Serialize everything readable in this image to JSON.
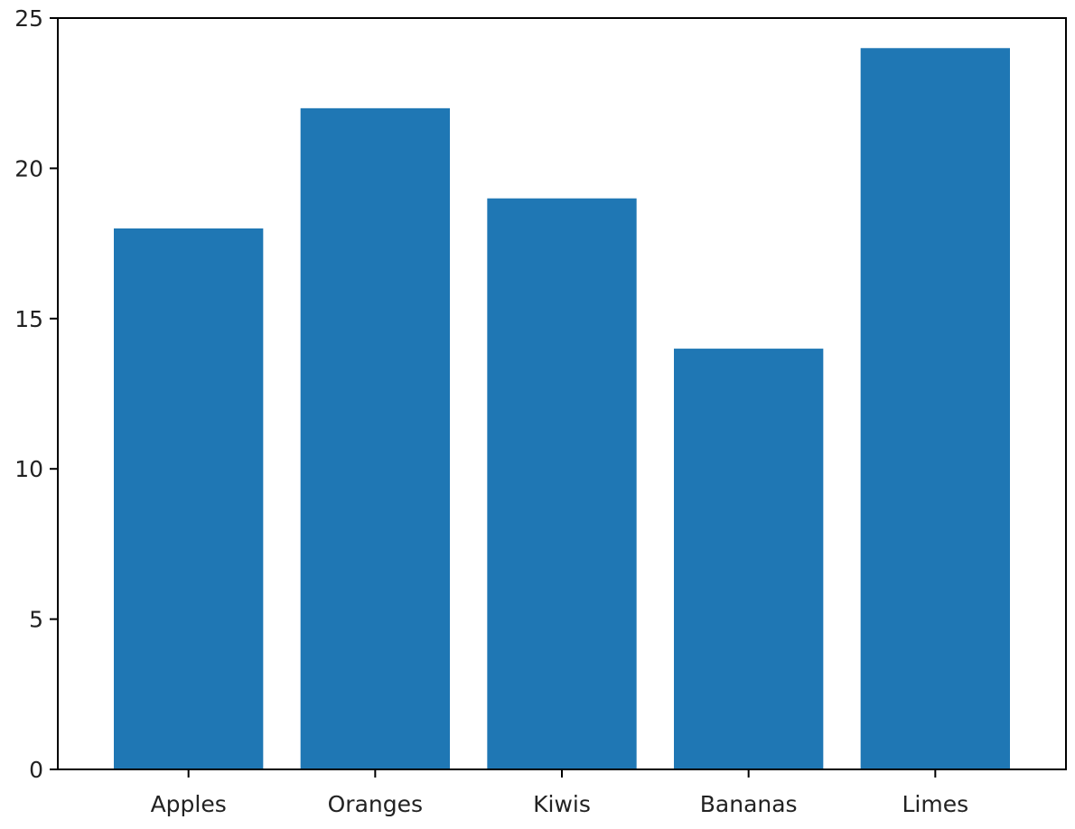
{
  "chart_data": {
    "type": "bar",
    "categories": [
      "Apples",
      "Oranges",
      "Kiwis",
      "Bananas",
      "Limes"
    ],
    "values": [
      18,
      22,
      19,
      14,
      24
    ],
    "title": "",
    "xlabel": "",
    "ylabel": "",
    "ylim": [
      0,
      25
    ],
    "yticks": [
      0,
      5,
      10,
      15,
      20,
      25
    ],
    "grid": false,
    "legend": "none",
    "bar_color": "#1f77b4",
    "axis_color": "#000000",
    "text_color": "#222222"
  }
}
